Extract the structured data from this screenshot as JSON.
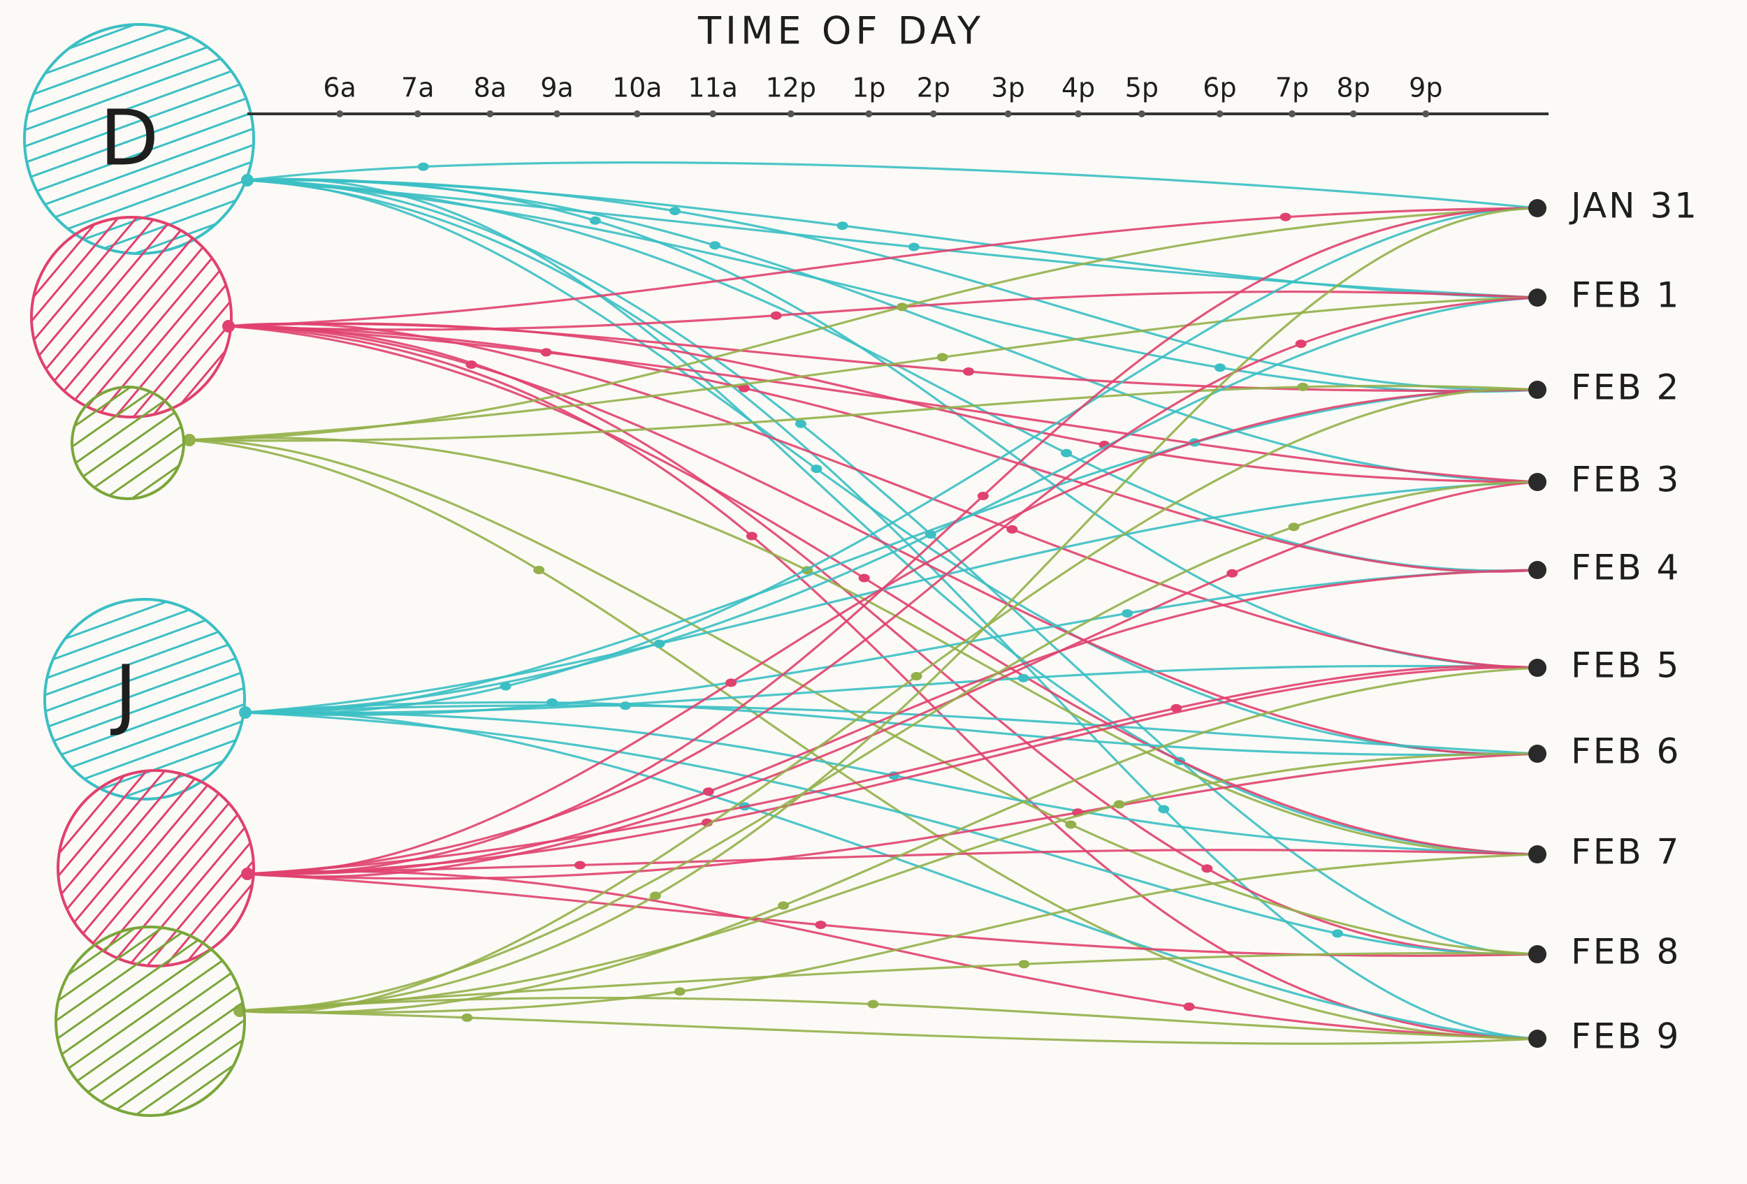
{
  "title": "TIME OF DAY",
  "time_axis": [
    "6a",
    "7a",
    "8a",
    "9a",
    "10a",
    "11a",
    "12p",
    "1p",
    "2p",
    "3p",
    "4p",
    "5p",
    "6p",
    "7p",
    "8p",
    "9p"
  ],
  "people": [
    {
      "label": "D"
    },
    {
      "label": "J"
    }
  ],
  "dates": [
    "JAN 31",
    "FEB 1",
    "FEB 2",
    "FEB 3",
    "FEB 4",
    "FEB 5",
    "FEB 6",
    "FEB 7",
    "FEB 8",
    "FEB 9"
  ]
}
